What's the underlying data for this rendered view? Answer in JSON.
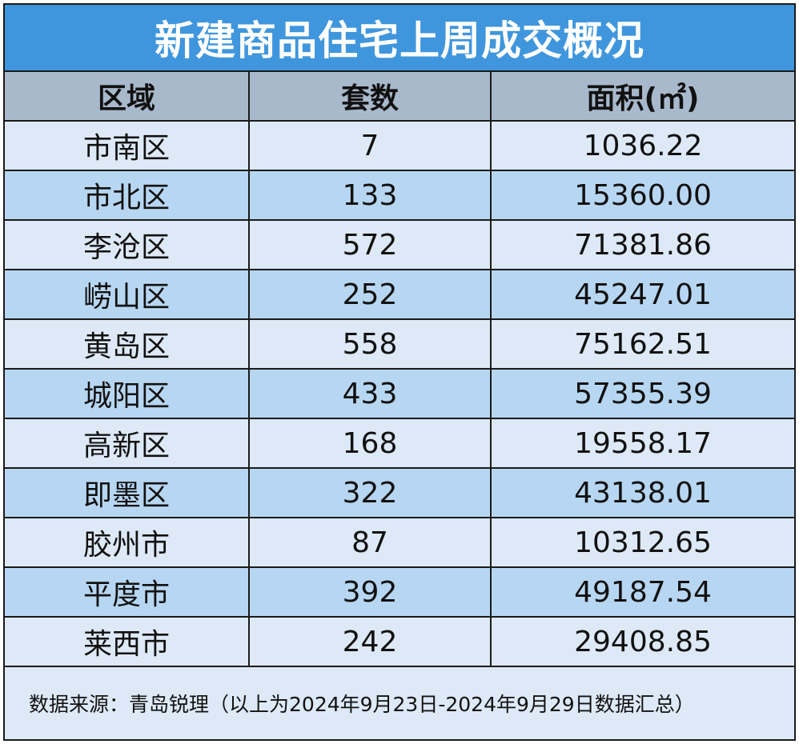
{
  "title": "新建商品住宅上周成交概况",
  "headers": {
    "region": "区域",
    "units": "套数",
    "area": "面积(㎡)"
  },
  "rows": [
    {
      "region": "市南区",
      "units": "7",
      "area": "1036.22"
    },
    {
      "region": "市北区",
      "units": "133",
      "area": "15360.00"
    },
    {
      "region": "李沧区",
      "units": "572",
      "area": "71381.86"
    },
    {
      "region": "崂山区",
      "units": "252",
      "area": "45247.01"
    },
    {
      "region": "黄岛区",
      "units": "558",
      "area": "75162.51"
    },
    {
      "region": "城阳区",
      "units": "433",
      "area": "57355.39"
    },
    {
      "region": "高新区",
      "units": "168",
      "area": "19558.17"
    },
    {
      "region": "即墨区",
      "units": "322",
      "area": "43138.01"
    },
    {
      "region": "胶州市",
      "units": "87",
      "area": "10312.65"
    },
    {
      "region": "平度市",
      "units": "392",
      "area": "49187.54"
    },
    {
      "region": "莱西市",
      "units": "242",
      "area": "29408.85"
    }
  ],
  "footer": "数据来源：青岛锐理（以上为2024年9月23日-2024年9月29日数据汇总）",
  "colors": {
    "title_bg": "#3f96dd",
    "header_bg": "#a9b9cc",
    "row_light": "#dde9f6",
    "row_dark": "#b7d6f1"
  }
}
